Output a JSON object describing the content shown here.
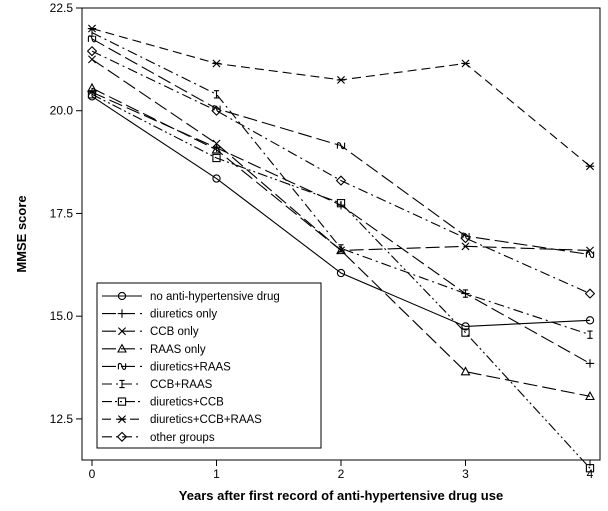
{
  "chart_data": {
    "type": "line",
    "title": "",
    "xlabel": "Years after first record of anti-hypertensive drug use",
    "ylabel": "MMSE score",
    "xlim": [
      0,
      4
    ],
    "ylim": [
      11.5,
      22.5
    ],
    "x_ticks": [
      "0",
      "1",
      "2",
      "3",
      "4"
    ],
    "y_ticks": [
      "12.5",
      "15.0",
      "17.5",
      "20.0",
      "22.5"
    ],
    "y_tick_values": [
      12.5,
      15.0,
      17.5,
      20.0,
      22.5
    ],
    "legend_position": "bottom-left",
    "x": [
      0,
      1,
      2,
      3,
      4
    ],
    "series": [
      {
        "name": "no anti-hypertensive drug",
        "marker": "circle",
        "dash": "solid",
        "values": [
          20.35,
          18.35,
          16.05,
          14.75,
          14.9
        ]
      },
      {
        "name": "diuretics only",
        "marker": "plus",
        "dash": "long-dash",
        "values": [
          20.45,
          19.1,
          17.7,
          15.55,
          13.85
        ]
      },
      {
        "name": "CCB only",
        "marker": "x",
        "dash": "long-dash",
        "values": [
          21.25,
          19.2,
          16.6,
          16.7,
          16.6
        ]
      },
      {
        "name": "RAAS only",
        "marker": "triangle",
        "dash": "long-dash",
        "values": [
          20.55,
          19.05,
          16.6,
          13.65,
          13.05
        ]
      },
      {
        "name": "diuretics+RAAS",
        "marker": "tilde",
        "dash": "long-dash",
        "values": [
          21.75,
          20.05,
          19.15,
          16.95,
          16.5
        ]
      },
      {
        "name": "CCB+RAAS",
        "marker": "ibeam",
        "dash": "dash-dot",
        "values": [
          21.9,
          20.4,
          16.65,
          15.55,
          14.55
        ]
      },
      {
        "name": "diuretics+CCB",
        "marker": "square",
        "dash": "dash-dot-dot",
        "values": [
          20.4,
          18.85,
          17.75,
          14.6,
          11.3
        ]
      },
      {
        "name": "diuretics+CCB+RAAS",
        "marker": "star",
        "dash": "dash",
        "values": [
          22.0,
          21.15,
          20.75,
          21.15,
          18.65
        ]
      },
      {
        "name": "other groups",
        "marker": "diamond",
        "dash": "dash-dot",
        "values": [
          21.45,
          20.0,
          18.3,
          16.9,
          15.55
        ]
      }
    ]
  }
}
